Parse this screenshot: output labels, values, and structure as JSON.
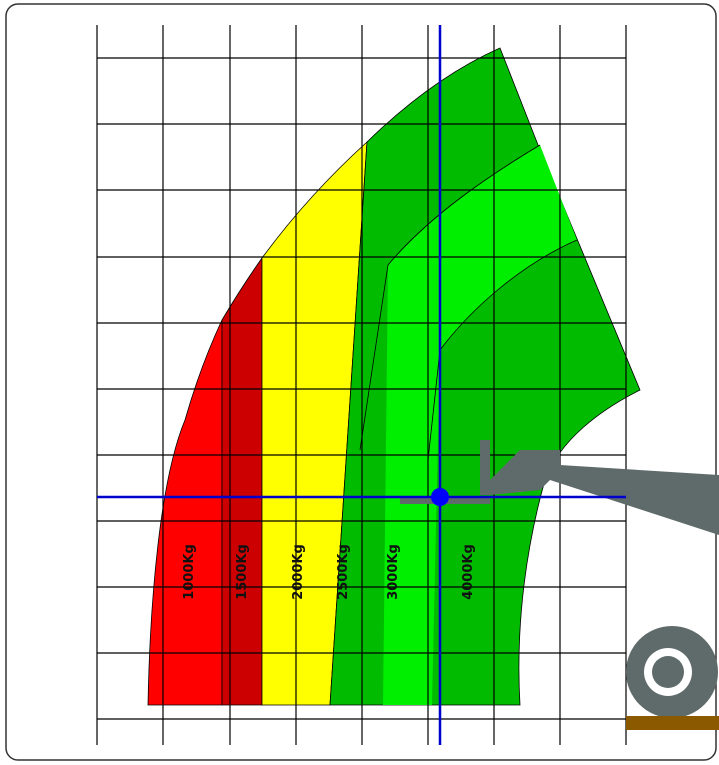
{
  "zones": [
    {
      "label": "1000Kg"
    },
    {
      "label": "1500Kg"
    },
    {
      "label": "2000Kg"
    },
    {
      "label": "2500Kg"
    },
    {
      "label": "3000Kg"
    },
    {
      "label": "4000Kg"
    }
  ]
}
